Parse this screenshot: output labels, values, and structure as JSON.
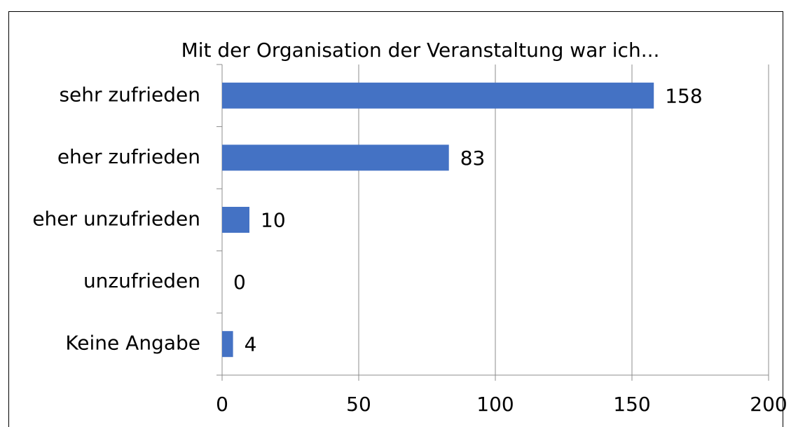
{
  "chart_data": {
    "type": "barh",
    "title": "Mit der Organisation der Veranstaltung war ich...",
    "categories": [
      "sehr zufrieden",
      "eher zufrieden",
      "eher unzufrieden",
      "unzufrieden",
      "Keine Angabe"
    ],
    "values": [
      158,
      83,
      10,
      0,
      4
    ],
    "color": "#4472c4",
    "xlim": [
      0,
      200
    ],
    "xticks": [
      0,
      50,
      100,
      150,
      200
    ],
    "grid": true
  }
}
